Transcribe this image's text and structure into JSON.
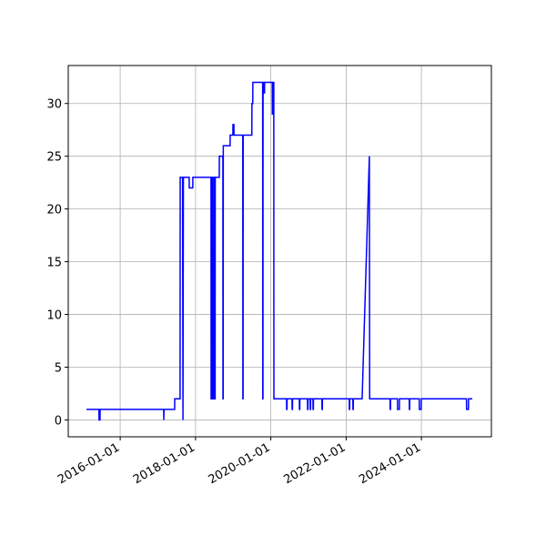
{
  "chart_data": {
    "type": "line",
    "x": [
      "2015-02-08",
      "2015-06-09",
      "2015-06-10",
      "2015-06-19",
      "2015-06-20",
      "2017-02-26",
      "2017-02-27",
      "2017-03-01",
      "2017-06-12",
      "2017-06-13",
      "2017-08-04",
      "2017-08-05",
      "2017-08-28",
      "2017-09-01",
      "2017-09-05",
      "2017-10-31",
      "2017-11-01",
      "2017-12-05",
      "2017-12-06",
      "2018-05-31",
      "2018-06-01",
      "2018-06-05",
      "2018-06-06",
      "2018-06-15",
      "2018-06-16",
      "2018-06-28",
      "2018-06-29",
      "2018-07-05",
      "2018-07-06",
      "2018-07-10",
      "2018-07-11",
      "2018-08-19",
      "2018-08-20",
      "2018-09-23",
      "2018-09-24",
      "2018-09-26",
      "2018-09-27",
      "2018-12-02",
      "2018-12-03",
      "2018-12-29",
      "2018-12-30",
      "2019-01-08",
      "2019-01-09",
      "2019-04-04",
      "2019-04-05",
      "2019-04-07",
      "2019-04-08",
      "2019-07-01",
      "2019-07-02",
      "2019-07-10",
      "2019-07-11",
      "2019-10-14",
      "2019-10-15",
      "2019-10-17",
      "2019-10-18",
      "2019-10-25",
      "2019-10-26",
      "2019-11-01",
      "2019-11-02",
      "2020-01-15",
      "2020-01-16",
      "2020-01-19",
      "2020-01-20",
      "2020-01-30",
      "2020-01-31",
      "2020-06-02",
      "2020-06-03",
      "2020-06-06",
      "2020-06-07",
      "2020-07-25",
      "2020-07-26",
      "2020-07-29",
      "2020-07-30",
      "2020-10-04",
      "2020-10-05",
      "2020-10-08",
      "2020-10-09",
      "2020-12-22",
      "2020-12-23",
      "2020-12-26",
      "2020-12-27",
      "2021-01-17",
      "2021-01-18",
      "2021-01-21",
      "2021-01-22",
      "2021-02-13",
      "2021-02-14",
      "2021-02-17",
      "2021-02-18",
      "2021-05-11",
      "2021-05-12",
      "2021-05-15",
      "2021-05-16",
      "2022-01-31",
      "2022-02-01",
      "2022-02-04",
      "2022-02-05",
      "2022-03-07",
      "2022-03-08",
      "2022-03-11",
      "2022-03-12",
      "2022-06-05",
      "2022-08-14",
      "2022-08-17",
      "2023-03-03",
      "2023-03-04",
      "2023-03-07",
      "2023-03-08",
      "2023-05-14",
      "2023-05-15",
      "2023-06-01",
      "2023-06-02",
      "2023-09-05",
      "2023-09-06",
      "2023-09-09",
      "2023-09-10",
      "2023-12-11",
      "2023-12-12",
      "2023-12-30",
      "2023-12-31",
      "2025-03-13",
      "2025-03-14",
      "2025-04-01",
      "2025-04-02",
      "2025-05-08"
    ],
    "values": [
      1,
      1,
      0,
      0,
      1,
      1,
      0,
      1,
      1,
      2,
      2,
      23,
      23,
      0,
      23,
      23,
      22,
      22,
      23,
      23,
      2,
      2,
      23,
      23,
      2,
      2,
      23,
      23,
      2,
      2,
      23,
      23,
      25,
      25,
      2,
      2,
      26,
      26,
      27,
      27,
      28,
      28,
      27,
      27,
      2,
      2,
      27,
      27,
      30,
      30,
      32,
      32,
      2,
      2,
      32,
      32,
      31,
      31,
      32,
      32,
      29,
      29,
      32,
      32,
      2,
      2,
      1,
      1,
      2,
      2,
      1,
      1,
      2,
      2,
      1,
      1,
      2,
      2,
      1,
      1,
      2,
      2,
      1,
      1,
      2,
      2,
      1,
      1,
      2,
      2,
      1,
      1,
      2,
      2,
      1,
      1,
      2,
      2,
      1,
      1,
      2,
      2,
      25,
      2,
      2,
      1,
      1,
      2,
      2,
      1,
      1,
      2,
      2,
      1,
      1,
      2,
      2,
      1,
      1,
      2,
      2,
      1,
      1,
      2,
      2
    ],
    "color": "#0000ff",
    "xlim": [
      "2014-08-15",
      "2025-11-10"
    ],
    "xticks": [
      "2016-01-01",
      "2018-01-01",
      "2020-01-01",
      "2022-01-01",
      "2024-01-01"
    ],
    "ylim": [
      -1.6,
      33.6
    ],
    "yticks": [
      0,
      5,
      10,
      15,
      20,
      25,
      30
    ],
    "grid": true
  }
}
